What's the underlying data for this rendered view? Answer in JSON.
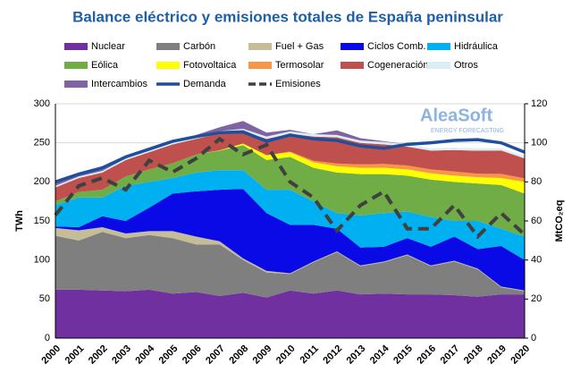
{
  "chart_data": {
    "type": "area",
    "stacked": true,
    "title": "Balance eléctrico y emisiones totales de España peninsular",
    "y_label": "TWh",
    "y2_label": "MtCO₂eq",
    "logo": {
      "name": "AleaSoft",
      "tagline": "ENERGY FORECASTING"
    },
    "categories": [
      "2000",
      "2001",
      "2002",
      "2003",
      "2004",
      "2005",
      "2006",
      "2007",
      "2008",
      "2009",
      "2010",
      "2011",
      "2012",
      "2013",
      "2014",
      "2015",
      "2016",
      "2017",
      "2018",
      "2019",
      "2020"
    ],
    "series": [
      {
        "name": "Nuclear",
        "color": "#7030a0",
        "values": [
          62,
          62,
          61,
          60,
          62,
          57,
          59,
          54,
          58,
          52,
          61,
          57,
          61,
          56,
          57,
          56,
          56,
          55,
          53,
          56,
          56
        ]
      },
      {
        "name": "Carbón",
        "color": "#7f7f7f",
        "values": [
          69,
          63,
          75,
          68,
          70,
          71,
          61,
          66,
          42,
          32,
          21,
          40,
          49,
          36,
          40,
          50,
          36,
          43,
          35,
          9,
          4
        ]
      },
      {
        "name": "Fuel + Gas",
        "color": "#c4bd97",
        "values": [
          10,
          13,
          6,
          6,
          5,
          9,
          10,
          4,
          2,
          2,
          1,
          1,
          1,
          1,
          1,
          1,
          1,
          1,
          1,
          1,
          1
        ]
      },
      {
        "name": "Ciclos Comb.",
        "color": "#0a0ae6",
        "values": [
          2,
          4,
          14,
          16,
          30,
          48,
          58,
          66,
          89,
          74,
          62,
          47,
          29,
          23,
          19,
          21,
          24,
          31,
          25,
          52,
          39
        ]
      },
      {
        "name": "Hidráulica",
        "color": "#00b0f0",
        "values": [
          27,
          38,
          24,
          45,
          33,
          20,
          24,
          25,
          24,
          30,
          45,
          30,
          20,
          41,
          43,
          34,
          38,
          20,
          36,
          22,
          30
        ]
      },
      {
        "name": "Eólica",
        "color": "#70ad47",
        "values": [
          5,
          7,
          10,
          12,
          16,
          19,
          23,
          25,
          32,
          38,
          42,
          43,
          52,
          53,
          50,
          46,
          48,
          50,
          48,
          56,
          55
        ]
      },
      {
        "name": "Fotovoltaica",
        "color": "#ffff00",
        "values": [
          0,
          0,
          0,
          0,
          0,
          0,
          0,
          0.5,
          2,
          6,
          6,
          7,
          8,
          8,
          8,
          8,
          8,
          8,
          8,
          9,
          15
        ]
      },
      {
        "name": "Termosolar",
        "color": "#f79646",
        "values": [
          0,
          0,
          0,
          0,
          0,
          0,
          0,
          0,
          0,
          0.1,
          0.7,
          2,
          3.5,
          4.4,
          5,
          5,
          5,
          5.3,
          4.4,
          5.2,
          4.5
        ]
      },
      {
        "name": "Cogeneración",
        "color": "#c0504d",
        "values": [
          18,
          18,
          22,
          21,
          22,
          24,
          20,
          21.5,
          16,
          21,
          23,
          31,
          33.5,
          27.5,
          25,
          24,
          24,
          27.5,
          29.5,
          30,
          25.5
        ]
      },
      {
        "name": "Otros",
        "color": "#dbeef4",
        "values": [
          2,
          2,
          2,
          2,
          3,
          3,
          3,
          3,
          3,
          3,
          3,
          3,
          3,
          3,
          3,
          3,
          3,
          3,
          3,
          3,
          3
        ]
      },
      {
        "name": "Intercambios",
        "color": "#8064a2",
        "values": [
          4,
          3,
          2,
          1,
          0,
          0,
          2,
          5,
          10,
          5,
          2,
          0,
          6,
          3,
          1,
          0,
          0,
          0,
          0,
          0,
          0
        ]
      }
    ],
    "lines": [
      {
        "name": "Demanda",
        "color": "#1f4e9c",
        "style": "solid",
        "axis": "y",
        "values": [
          200,
          210,
          218,
          232,
          242,
          252,
          258,
          263,
          264,
          252,
          260,
          255,
          253,
          246,
          243,
          248,
          250,
          253,
          254,
          250,
          238
        ]
      },
      {
        "name": "Emisiones",
        "color": "#404040",
        "style": "dashed",
        "axis": "y2",
        "values": [
          63,
          78,
          82,
          76,
          91,
          85,
          92,
          102,
          94,
          99,
          80,
          72,
          55,
          68,
          75,
          56,
          56,
          68,
          52,
          64,
          53
        ]
      }
    ],
    "ylim": [
      0,
      300
    ],
    "yticks": [
      0,
      50,
      100,
      150,
      200,
      250,
      300
    ],
    "y2lim": [
      0,
      120
    ],
    "y2ticks": [
      0,
      20,
      40,
      60,
      80,
      100,
      120
    ],
    "grid": true
  }
}
